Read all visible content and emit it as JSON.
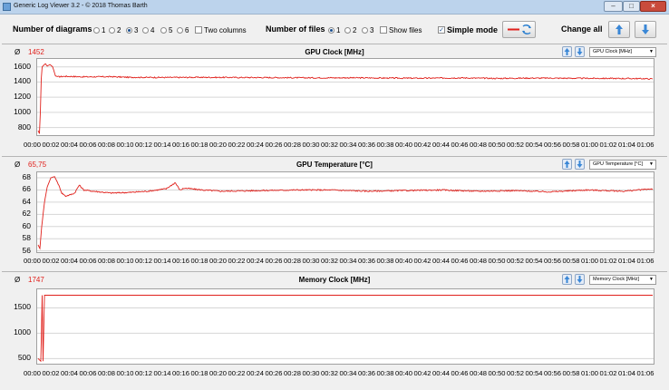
{
  "window": {
    "title": "Generic Log Viewer 3.2 - © 2018 Thomas Barth"
  },
  "toolbar": {
    "diagrams_label": "Number of diagrams",
    "diagram_options": [
      "1",
      "2",
      "3",
      "4",
      "5",
      "6"
    ],
    "diagrams_selected": "3",
    "two_columns_label": "Two columns",
    "files_label": "Number of files",
    "file_options": [
      "1",
      "2",
      "3"
    ],
    "files_selected": "1",
    "show_files_label": "Show files",
    "simple_mode_label": "Simple mode",
    "simple_mode_checked": true,
    "change_all_label": "Change all"
  },
  "colors": {
    "series": "#e0201b",
    "grid": "#d6d6d6"
  },
  "avg_symbol": "Ø",
  "x_ticks": [
    "00:00",
    "00:02",
    "00:04",
    "00:06",
    "00:08",
    "00:10",
    "00:12",
    "00:14",
    "00:16",
    "00:18",
    "00:20",
    "00:22",
    "00:24",
    "00:26",
    "00:28",
    "00:30",
    "00:32",
    "00:34",
    "00:36",
    "00:38",
    "00:40",
    "00:42",
    "00:44",
    "00:46",
    "00:48",
    "00:50",
    "00:52",
    "00:54",
    "00:56",
    "00:58",
    "01:00",
    "01:02",
    "01:04",
    "01:06"
  ],
  "panels": [
    {
      "title": "GPU Clock [MHz]",
      "avg": "1452",
      "selector": "GPU Clock [MHz]",
      "chart_data": {
        "type": "line",
        "title": "GPU Clock [MHz]",
        "ylim": [
          700,
          1680
        ],
        "y_ticks": [
          800,
          1000,
          1200,
          1400,
          1600
        ],
        "xlim": [
          0,
          67.2
        ],
        "series": [
          {
            "x": [
              0,
              0.15,
              0.25,
              0.35,
              0.45,
              0.6,
              0.8,
              1.0,
              1.3,
              1.6,
              1.9,
              2.2,
              3,
              5,
              8,
              10,
              14,
              18,
              22,
              26,
              30,
              34,
              38,
              42,
              46,
              50,
              54,
              58,
              62,
              66,
              67.2
            ],
            "y": [
              760,
              720,
              1000,
              1440,
              1600,
              1620,
              1640,
              1610,
              1630,
              1600,
              1480,
              1470,
              1475,
              1468,
              1470,
              1462,
              1460,
              1462,
              1460,
              1458,
              1455,
              1456,
              1452,
              1450,
              1455,
              1448,
              1452,
              1450,
              1448,
              1445,
              1440
            ]
          }
        ]
      }
    },
    {
      "title": "GPU Temperature [°C]",
      "avg": "65,75",
      "selector": "GPU Temperature [°C]",
      "chart_data": {
        "type": "line",
        "title": "GPU Temperature [°C]",
        "ylim": [
          55.8,
          68.6
        ],
        "y_ticks": [
          56,
          58,
          60,
          62,
          64,
          66,
          68
        ],
        "xlim": [
          0,
          67.2
        ],
        "series": [
          {
            "x": [
              0,
              0.2,
              0.4,
              0.7,
              1.0,
              1.4,
              1.8,
              2.2,
              2.6,
              3.0,
              3.5,
              4.0,
              4.5,
              5.0,
              6,
              8,
              10,
              12,
              14,
              15,
              15.5,
              16,
              18,
              20,
              24,
              28,
              32,
              36,
              40,
              44,
              48,
              52,
              56,
              60,
              64,
              67.2
            ],
            "y": [
              57,
              56.4,
              60,
              64,
              66.5,
              68,
              68.2,
              67,
              65.5,
              65,
              65.2,
              65.5,
              66.8,
              66,
              65.8,
              65.5,
              65.6,
              65.8,
              66.2,
              67.2,
              66,
              66.3,
              66,
              65.8,
              65.9,
              66,
              66,
              65.8,
              65.9,
              66,
              65.8,
              65.9,
              65.7,
              66,
              65.8,
              66.2
            ]
          }
        ]
      }
    },
    {
      "title": "Memory Clock [MHz]",
      "avg": "1747",
      "selector": "Memory Clock [MHz]",
      "chart_data": {
        "type": "line",
        "title": "Memory Clock [MHz]",
        "ylim": [
          400,
          1830
        ],
        "y_ticks": [
          500,
          1000,
          1500
        ],
        "xlim": [
          0,
          67.2
        ],
        "series": [
          {
            "x": [
              0,
              0.3,
              0.45,
              0.55,
              0.7,
              2,
              10,
              20,
              30,
              40,
              50,
              60,
              67.2
            ],
            "y": [
              500,
              450,
              1750,
              450,
              1750,
              1750,
              1750,
              1750,
              1750,
              1750,
              1750,
              1750,
              1750
            ]
          }
        ]
      }
    }
  ]
}
